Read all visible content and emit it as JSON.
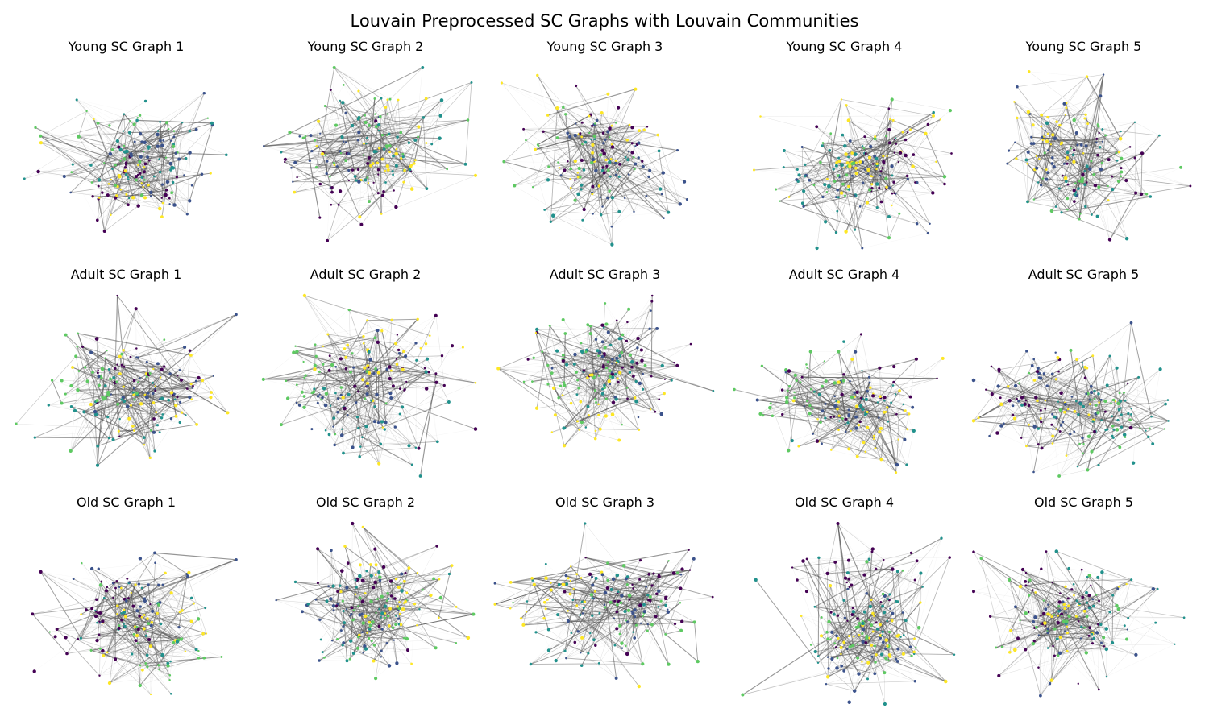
{
  "figure": {
    "title": "Louvain Preprocessed SC Graphs with Louvain Communities"
  },
  "palette": {
    "community_colors": [
      "#440154",
      "#3b528b",
      "#21918c",
      "#5ec962",
      "#fde725",
      "#2c728e",
      "#a0da39"
    ],
    "edge_color": "#555555"
  },
  "panels": [
    {
      "title": "Young SC Graph 1",
      "group": "Young",
      "index": 1,
      "seed": 11
    },
    {
      "title": "Young SC Graph 2",
      "group": "Young",
      "index": 2,
      "seed": 23
    },
    {
      "title": "Young SC Graph 3",
      "group": "Young",
      "index": 3,
      "seed": 37
    },
    {
      "title": "Young SC Graph 4",
      "group": "Young",
      "index": 4,
      "seed": 41
    },
    {
      "title": "Young SC Graph 5",
      "group": "Young",
      "index": 5,
      "seed": 53
    },
    {
      "title": "Adult SC Graph 1",
      "group": "Adult",
      "index": 1,
      "seed": 61
    },
    {
      "title": "Adult SC Graph 2",
      "group": "Adult",
      "index": 2,
      "seed": 73
    },
    {
      "title": "Adult SC Graph 3",
      "group": "Adult",
      "index": 3,
      "seed": 83
    },
    {
      "title": "Adult SC Graph 4",
      "group": "Adult",
      "index": 4,
      "seed": 97
    },
    {
      "title": "Adult SC Graph 5",
      "group": "Adult",
      "index": 5,
      "seed": 101
    },
    {
      "title": "Old SC Graph 1",
      "group": "Old",
      "index": 1,
      "seed": 113
    },
    {
      "title": "Old SC Graph 2",
      "group": "Old",
      "index": 2,
      "seed": 127
    },
    {
      "title": "Old SC Graph 3",
      "group": "Old",
      "index": 3,
      "seed": 139
    },
    {
      "title": "Old SC Graph 4",
      "group": "Old",
      "index": 4,
      "seed": 149
    },
    {
      "title": "Old SC Graph 5",
      "group": "Old",
      "index": 5,
      "seed": 157
    }
  ]
}
